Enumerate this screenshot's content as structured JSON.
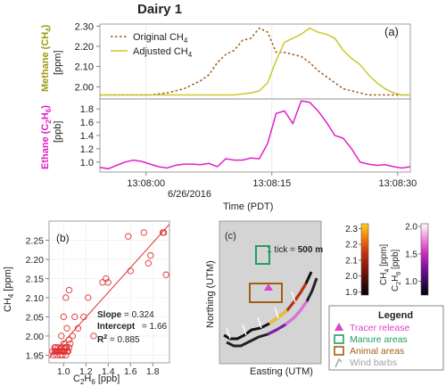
{
  "figure": {
    "title": "Dairy 1",
    "panel_a_label": "(a)",
    "panel_b_label": "(b)",
    "panel_c_label": "(c)"
  },
  "chart_data": [
    {
      "id": "a-top",
      "type": "line",
      "ylabel": "Methane (CH4) [ppm]",
      "ylabel_parts": [
        "Methane (CH",
        "4",
        ")"
      ],
      "yunit": "[ppm]",
      "ylim": [
        1.94,
        2.31
      ],
      "yticks": [
        "2.30",
        "2.20",
        "2.10",
        "2.00"
      ],
      "ytick_values": [
        2.3,
        2.2,
        2.1,
        2.0
      ],
      "x_time_seconds": [
        0,
        37
      ],
      "series": [
        {
          "name": "Original CH4",
          "name_parts": [
            "Original CH",
            "4"
          ],
          "color": "#a0581a",
          "style": "dashed",
          "x": [
            0,
            2,
            4,
            6,
            8,
            10,
            11,
            12,
            13,
            14,
            15,
            16,
            17,
            18,
            19,
            20,
            21,
            22,
            23,
            24,
            25,
            26,
            27,
            28,
            29,
            30,
            31,
            32,
            33,
            34,
            35,
            36,
            37
          ],
          "y": [
            1.96,
            1.96,
            1.96,
            1.96,
            1.97,
            1.99,
            2.01,
            2.03,
            2.06,
            2.12,
            2.16,
            2.18,
            2.23,
            2.24,
            2.29,
            2.27,
            2.17,
            2.17,
            2.16,
            2.15,
            2.12,
            2.08,
            2.05,
            2.02,
            1.99,
            1.98,
            1.97,
            1.96,
            1.96,
            1.96,
            1.96,
            1.96,
            1.96
          ]
        },
        {
          "name": "Adjusted CH4",
          "name_parts": [
            "Adjusted CH",
            "4"
          ],
          "color": "#c9c92a",
          "style": "solid",
          "x": [
            0,
            2,
            4,
            6,
            8,
            10,
            12,
            14,
            16,
            18,
            19,
            20,
            21,
            22,
            23,
            24,
            25,
            26,
            27,
            28,
            29,
            30,
            31,
            32,
            33,
            34,
            35,
            36,
            37
          ],
          "y": [
            1.96,
            1.96,
            1.96,
            1.96,
            1.96,
            1.96,
            1.96,
            1.96,
            1.96,
            1.97,
            1.98,
            2.02,
            2.13,
            2.22,
            2.24,
            2.26,
            2.29,
            2.27,
            2.26,
            2.24,
            2.18,
            2.14,
            2.11,
            2.06,
            2.02,
            1.99,
            1.97,
            1.96,
            1.96
          ]
        }
      ]
    },
    {
      "id": "a-bottom",
      "type": "line",
      "ylabel": "Ethane (C2H6) [ppb]",
      "ylabel_parts": [
        "Ethane (C",
        "2",
        "H",
        "6",
        ")"
      ],
      "yunit": "[ppb]",
      "ylim": [
        0.85,
        1.95
      ],
      "yticks": [
        "1.8",
        "1.6",
        "1.4",
        "1.2",
        "1.0"
      ],
      "ytick_values": [
        1.8,
        1.6,
        1.4,
        1.2,
        1.0
      ],
      "x_time_seconds": [
        0,
        37
      ],
      "xticks": [
        "13:08:00",
        "13:08:15",
        "13:08:30"
      ],
      "xtick_seconds": [
        5.5,
        20.5,
        35.5
      ],
      "xdate": "6/26/2016",
      "xlabel": "Time (PDT)",
      "series": [
        {
          "name": "Ethane",
          "color": "#e020c8",
          "x": [
            0,
            1,
            2,
            3,
            4,
            5,
            6,
            7,
            8,
            9,
            10,
            11,
            12,
            13,
            14,
            15,
            16,
            17,
            18,
            19,
            20,
            21,
            22,
            23,
            24,
            25,
            26,
            27,
            28,
            29,
            30,
            31,
            32,
            33,
            34,
            35,
            36,
            37
          ],
          "y": [
            0.92,
            0.9,
            0.95,
            1.0,
            1.03,
            1.01,
            0.97,
            0.93,
            0.91,
            0.95,
            0.97,
            0.97,
            0.96,
            0.98,
            0.93,
            1.05,
            1.03,
            1.03,
            1.06,
            1.05,
            1.28,
            1.73,
            1.77,
            1.58,
            1.92,
            1.9,
            1.77,
            1.6,
            1.4,
            1.36,
            1.2,
            1.0,
            0.97,
            0.95,
            0.96,
            0.93,
            0.91,
            0.93
          ]
        }
      ]
    },
    {
      "id": "b",
      "type": "scatter",
      "xlabel": "C2H6 [ppb]",
      "xlabel_parts": [
        "C",
        "2",
        "H",
        "6",
        " [ppb]"
      ],
      "ylabel": "CH4 [ppm]",
      "ylabel_parts": [
        "CH",
        "4",
        " [ppm]"
      ],
      "xlim": [
        0.87,
        1.95
      ],
      "ylim": [
        1.93,
        2.3
      ],
      "xticks": [
        "1.0",
        "1.2",
        "1.4",
        "1.6",
        "1.8"
      ],
      "xtick_values": [
        1.0,
        1.2,
        1.4,
        1.6,
        1.8
      ],
      "yticks": [
        "2.25",
        "2.20",
        "2.15",
        "2.10",
        "2.05",
        "2.00",
        "1.95"
      ],
      "ytick_values": [
        2.25,
        2.2,
        2.15,
        2.1,
        2.05,
        2.0,
        1.95
      ],
      "points_x": [
        0.9,
        0.91,
        0.92,
        0.93,
        0.94,
        0.95,
        0.96,
        0.97,
        0.98,
        0.99,
        1.0,
        1.01,
        1.02,
        1.03,
        1.04,
        1.05,
        0.93,
        0.95,
        0.97,
        0.99,
        1.01,
        1.03,
        0.92,
        0.96,
        1.0,
        1.04,
        0.94,
        0.98,
        1.02,
        1.06,
        1.0,
        1.03,
        0.98,
        1.02,
        1.08,
        1.1,
        1.05,
        1.13,
        1.22,
        1.18,
        1.35,
        1.38,
        1.4,
        1.58,
        1.6,
        1.72,
        1.76,
        1.78,
        1.89,
        1.9,
        1.92,
        1.05,
        1.27
      ],
      "points_y": [
        1.96,
        1.95,
        1.96,
        1.97,
        1.95,
        1.96,
        1.96,
        1.95,
        1.97,
        1.96,
        1.96,
        1.97,
        1.95,
        1.96,
        1.96,
        1.97,
        1.96,
        1.97,
        1.96,
        1.95,
        1.96,
        1.97,
        1.97,
        1.96,
        1.98,
        1.96,
        1.96,
        1.96,
        1.97,
        1.98,
        2.05,
        2.02,
        2.0,
        2.1,
        2.0,
        2.05,
        2.12,
        2.02,
        2.1,
        2.05,
        2.14,
        2.15,
        2.14,
        2.26,
        2.17,
        2.27,
        2.19,
        2.21,
        2.27,
        2.27,
        2.16,
        1.99,
        2.0
      ],
      "marker_color": "#e03030",
      "fit_color": "#e03030",
      "fit": {
        "slope": 0.324,
        "intercept": 1.66
      },
      "stats": {
        "slope_label": "Slope",
        "slope_value": "= 0.324",
        "intercept_label": "Intercept",
        "intercept_value": "= 1.66",
        "r2_label": "R",
        "r2_sup": "2",
        "r2_value": " = 0.885"
      }
    }
  ],
  "map": {
    "label": "(c)",
    "scale_prefix": "1 tick = ",
    "scale_bold": "500 m",
    "xlabel": "Easting (UTM)",
    "ylabel": "Northing (UTM)",
    "background": "#d4d4d4"
  },
  "colorbars": {
    "ch4": {
      "label_parts": [
        "CH",
        "4",
        " [ppm]"
      ],
      "ticks": [
        "2.3",
        "2.2",
        "2.1",
        "2.0",
        "1.9"
      ],
      "tick_values": [
        2.3,
        2.2,
        2.1,
        2.0,
        1.9
      ],
      "range": [
        1.88,
        2.33
      ],
      "colors": [
        "#000000",
        "#4a0a0a",
        "#8a1a0a",
        "#c83210",
        "#f07a10",
        "#ffd21e"
      ]
    },
    "c2h6": {
      "label_parts": [
        "C",
        "2",
        "H",
        "6",
        " [ppb]"
      ],
      "ticks": [
        "2.0",
        "1.5",
        "1.0"
      ],
      "tick_values": [
        2.0,
        1.5,
        1.0
      ],
      "range": [
        0.75,
        2.05
      ],
      "colors": [
        "#000000",
        "#3a0a60",
        "#8a10a0",
        "#d030c0",
        "#f090e0",
        "#ffffff"
      ]
    }
  },
  "legend": {
    "title": "Legend",
    "items": [
      {
        "label": "Tracer release",
        "color": "#e040d0",
        "icon": "triangle-marker-icon"
      },
      {
        "label": "Manure areas",
        "color": "#20a060",
        "icon": "green-square-icon"
      },
      {
        "label": "Animal areas",
        "color": "#a06010",
        "icon": "brown-square-icon"
      },
      {
        "label": "Wind barbs",
        "color": "#a0a0a0",
        "icon": "wind-barb-icon"
      }
    ]
  }
}
